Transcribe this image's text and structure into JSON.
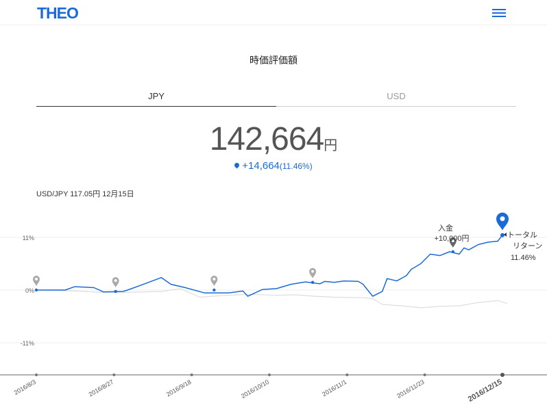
{
  "header": {
    "logo": "THEO",
    "menu_icon": "hamburger-icon"
  },
  "title": "時価評価額",
  "tabs": [
    {
      "label": "JPY",
      "active": true
    },
    {
      "label": "USD",
      "active": false
    }
  ],
  "value": {
    "amount": "142,664",
    "unit": "円"
  },
  "change": {
    "text": "+14,664",
    "pct": "(11.46%)"
  },
  "rate_text": "USD/JPY 117.05円 12月15日",
  "colors": {
    "accent": "#1a6ad9",
    "benchmark": "#dddddd",
    "grid": "#eeeeee"
  },
  "deposit": {
    "label": "入金",
    "amount": "+10,000円"
  },
  "total_return": {
    "label1": "トータル",
    "label2": "リターン",
    "value": "11.46%"
  },
  "chart_data": {
    "type": "line",
    "y_ticks": [
      "11%",
      "0%",
      "-11%"
    ],
    "ylim": [
      -17,
      14
    ],
    "x_labels": [
      "2016/8/3",
      "2016/8/27",
      "2016/9/18",
      "2016/10/10",
      "2016/11/1",
      "2016/11/23",
      "2016/12/15"
    ],
    "series": [
      {
        "color": "#1a6ad9",
        "points": [
          [
            0,
            0
          ],
          [
            6,
            0
          ],
          [
            8,
            0.7
          ],
          [
            12,
            0.5
          ],
          [
            14,
            -0.4
          ],
          [
            18,
            -0.3
          ],
          [
            19,
            0
          ],
          [
            22,
            1.1
          ],
          [
            26,
            2.6
          ],
          [
            28,
            1.2
          ],
          [
            31,
            0.5
          ],
          [
            35,
            -0.6
          ],
          [
            40,
            -0.6
          ],
          [
            43,
            -0.2
          ],
          [
            44,
            -1.3
          ],
          [
            47,
            0.1
          ],
          [
            50,
            0.3
          ],
          [
            53,
            1.2
          ],
          [
            56,
            1.7
          ],
          [
            59,
            1.3
          ],
          [
            60,
            1.8
          ],
          [
            62,
            1.6
          ],
          [
            64,
            1.9
          ],
          [
            67,
            1.8
          ],
          [
            68,
            1.2
          ],
          [
            70,
            -1.3
          ],
          [
            72,
            -0.3
          ],
          [
            73,
            2.4
          ],
          [
            75,
            1.9
          ],
          [
            77,
            3
          ],
          [
            78,
            4.3
          ],
          [
            80,
            5.5
          ],
          [
            82,
            7.5
          ],
          [
            84,
            7.2
          ],
          [
            86,
            8
          ],
          [
            88,
            7.5
          ],
          [
            89,
            8.8
          ],
          [
            90,
            8.4
          ],
          [
            92,
            9.5
          ],
          [
            94,
            10
          ],
          [
            96,
            10.2
          ],
          [
            97,
            11.46
          ]
        ]
      },
      {
        "color": "#dddddd",
        "points": [
          [
            0,
            0
          ],
          [
            8,
            -0.2
          ],
          [
            14,
            -0.5
          ],
          [
            18,
            -0.5
          ],
          [
            26,
            -0.3
          ],
          [
            30,
            0.3
          ],
          [
            34,
            -1.5
          ],
          [
            38,
            -1.2
          ],
          [
            42,
            -1
          ],
          [
            45,
            -0.9
          ],
          [
            50,
            -1.1
          ],
          [
            54,
            -1.0
          ],
          [
            58,
            -1.3
          ],
          [
            62,
            -1.5
          ],
          [
            68,
            -1.6
          ],
          [
            70,
            -1.8
          ],
          [
            72,
            -3.0
          ],
          [
            76,
            -3.3
          ],
          [
            80,
            -3.7
          ],
          [
            84,
            -3.4
          ],
          [
            88,
            -3.3
          ],
          [
            92,
            -2.6
          ],
          [
            96,
            -2.2
          ],
          [
            98,
            -2.8
          ]
        ]
      }
    ],
    "markers": [
      {
        "label": "2016/8/3",
        "x": 0,
        "y": 0
      },
      {
        "label": "2016/8/27",
        "x": 16.5,
        "y": -0.3
      },
      {
        "label": "2016/9/18",
        "x": 37,
        "y": 0
      },
      {
        "label": "2016/10/10",
        "x": 57.5,
        "y": 1.6
      },
      {
        "label": "入金",
        "x": 86.7,
        "y": 8
      }
    ]
  }
}
